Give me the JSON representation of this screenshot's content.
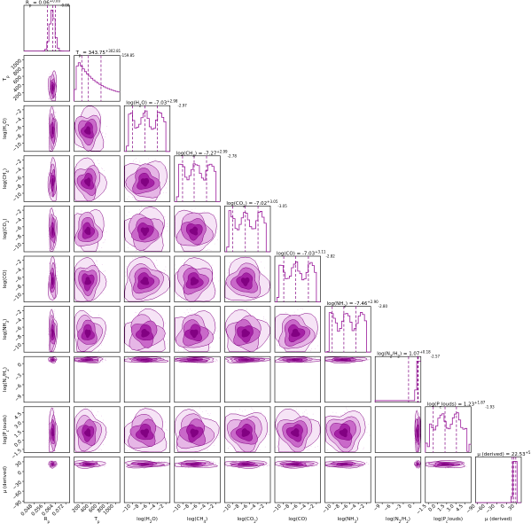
{
  "chart_data": {
    "type": "corner",
    "color": "#9b1a9b",
    "density_colors": [
      "#f5e3f5",
      "#e5b3e5",
      "#c765c7",
      "#a31fa3",
      "#800080"
    ],
    "parameters": [
      {
        "label": "R_p",
        "title": "R_p = 0.06^{+0.00}_{-0.00}",
        "range": [
          0.04,
          0.075
        ],
        "ticks": [
          {
            "v": 0.048,
            "t": "0.048"
          },
          {
            "v": 0.056,
            "t": "0.056"
          },
          {
            "v": 0.064,
            "t": "0.064"
          },
          {
            "v": 0.072,
            "t": "0.072"
          }
        ],
        "median": 0.062,
        "q16": 0.058,
        "q84": 0.064,
        "dist": "peak"
      },
      {
        "label": "T_p",
        "title": "T_p = 343.75^{+302.81}_{-159.85}",
        "range": [
          0,
          1100
        ],
        "ticks": [
          {
            "v": 200,
            "t": "200"
          },
          {
            "v": 400,
            "t": "400"
          },
          {
            "v": 600,
            "t": "600"
          },
          {
            "v": 800,
            "t": "800"
          },
          {
            "v": 1000,
            "t": "1000"
          }
        ],
        "median": 343.75,
        "q16": 184,
        "q84": 647,
        "dist": "decay"
      },
      {
        "label": "log(H_2O)",
        "title": "log(H_2O) = -7.03^{+2.98}_{-2.97}",
        "range": [
          -12,
          -1
        ],
        "ticks": [
          {
            "v": -10,
            "t": "−10"
          },
          {
            "v": -8,
            "t": "−8"
          },
          {
            "v": -6,
            "t": "−6"
          },
          {
            "v": -4,
            "t": "−4"
          },
          {
            "v": -2,
            "t": "−2"
          }
        ],
        "median": -7.03,
        "q16": -10.0,
        "q84": -4.05,
        "dist": "flat"
      },
      {
        "label": "log(CH_4)",
        "title": "log(CH_4) = -7.27^{+2.99}_{-2.78}",
        "range": [
          -12,
          -1
        ],
        "ticks": [
          {
            "v": -10,
            "t": "−10"
          },
          {
            "v": -8,
            "t": "−8"
          },
          {
            "v": -6,
            "t": "−6"
          },
          {
            "v": -4,
            "t": "−4"
          },
          {
            "v": -2,
            "t": "−2"
          }
        ],
        "median": -7.27,
        "q16": -10.05,
        "q84": -4.28,
        "dist": "flat"
      },
      {
        "label": "log(CO_2)",
        "title": "log(CO_2) = -7.02^{+3.05}_{-3.05}",
        "range": [
          -12,
          -1
        ],
        "ticks": [
          {
            "v": -10,
            "t": "−10"
          },
          {
            "v": -8,
            "t": "−8"
          },
          {
            "v": -6,
            "t": "−6"
          },
          {
            "v": -4,
            "t": "−4"
          },
          {
            "v": -2,
            "t": "−2"
          }
        ],
        "median": -7.02,
        "q16": -10.07,
        "q84": -3.97,
        "dist": "flat"
      },
      {
        "label": "log(CO)",
        "title": "log(CO) = -7.03^{+3.11}_{-2.82}",
        "range": [
          -12,
          -1
        ],
        "ticks": [
          {
            "v": -10,
            "t": "−10"
          },
          {
            "v": -8,
            "t": "−8"
          },
          {
            "v": -6,
            "t": "−6"
          },
          {
            "v": -4,
            "t": "−4"
          },
          {
            "v": -2,
            "t": "−2"
          }
        ],
        "median": -7.03,
        "q16": -9.85,
        "q84": -3.92,
        "dist": "flat"
      },
      {
        "label": "log(NH_3)",
        "title": "log(NH_3) = -7.46^{+2.90}_{-2.80}",
        "range": [
          -12,
          -1
        ],
        "ticks": [
          {
            "v": -10,
            "t": "−10"
          },
          {
            "v": -8,
            "t": "−8"
          },
          {
            "v": -6,
            "t": "−6"
          },
          {
            "v": -4,
            "t": "−4"
          },
          {
            "v": -2,
            "t": "−2"
          }
        ],
        "median": -7.46,
        "q16": -10.26,
        "q84": -4.56,
        "dist": "flat"
      },
      {
        "label": "log(N_2/H_2)",
        "title": "log(N_2/H_2) = 1.07^{+0.18}_{-2.57}",
        "range": [
          -11,
          2
        ],
        "ticks": [
          {
            "v": -9,
            "t": "−9"
          },
          {
            "v": -6,
            "t": "−6"
          },
          {
            "v": -3,
            "t": "−3"
          },
          {
            "v": 0,
            "t": "0"
          }
        ],
        "median": 1.07,
        "q16": -1.5,
        "q84": 1.25,
        "dist": "edge"
      },
      {
        "label": "log(P_clouds)",
        "title": "log(P_clouds) = 1.23^{+1.87}_{-1.93}",
        "range": [
          -2,
          5.5
        ],
        "ticks": [
          {
            "v": -1.5,
            "t": "−1.5"
          },
          {
            "v": 0,
            "t": "0.0"
          },
          {
            "v": 1.5,
            "t": "1.5"
          },
          {
            "v": 3,
            "t": "3.0"
          },
          {
            "v": 4.5,
            "t": "4.5"
          }
        ],
        "median": 1.23,
        "q16": -0.7,
        "q84": 3.1,
        "dist": "flat"
      },
      {
        "label": "μ (derived)",
        "title": "μ (derived) = 22.53^{+5.76}_{-5.21}",
        "range": [
          -95,
          45
        ],
        "ticks": [
          {
            "v": -90,
            "t": "−90"
          },
          {
            "v": -60,
            "t": "−60"
          },
          {
            "v": -30,
            "t": "−30"
          },
          {
            "v": 0,
            "t": "0"
          },
          {
            "v": 30,
            "t": "30"
          }
        ],
        "median": 22.53,
        "q16": 17.32,
        "q84": 28.29,
        "dist": "spike"
      }
    ]
  }
}
